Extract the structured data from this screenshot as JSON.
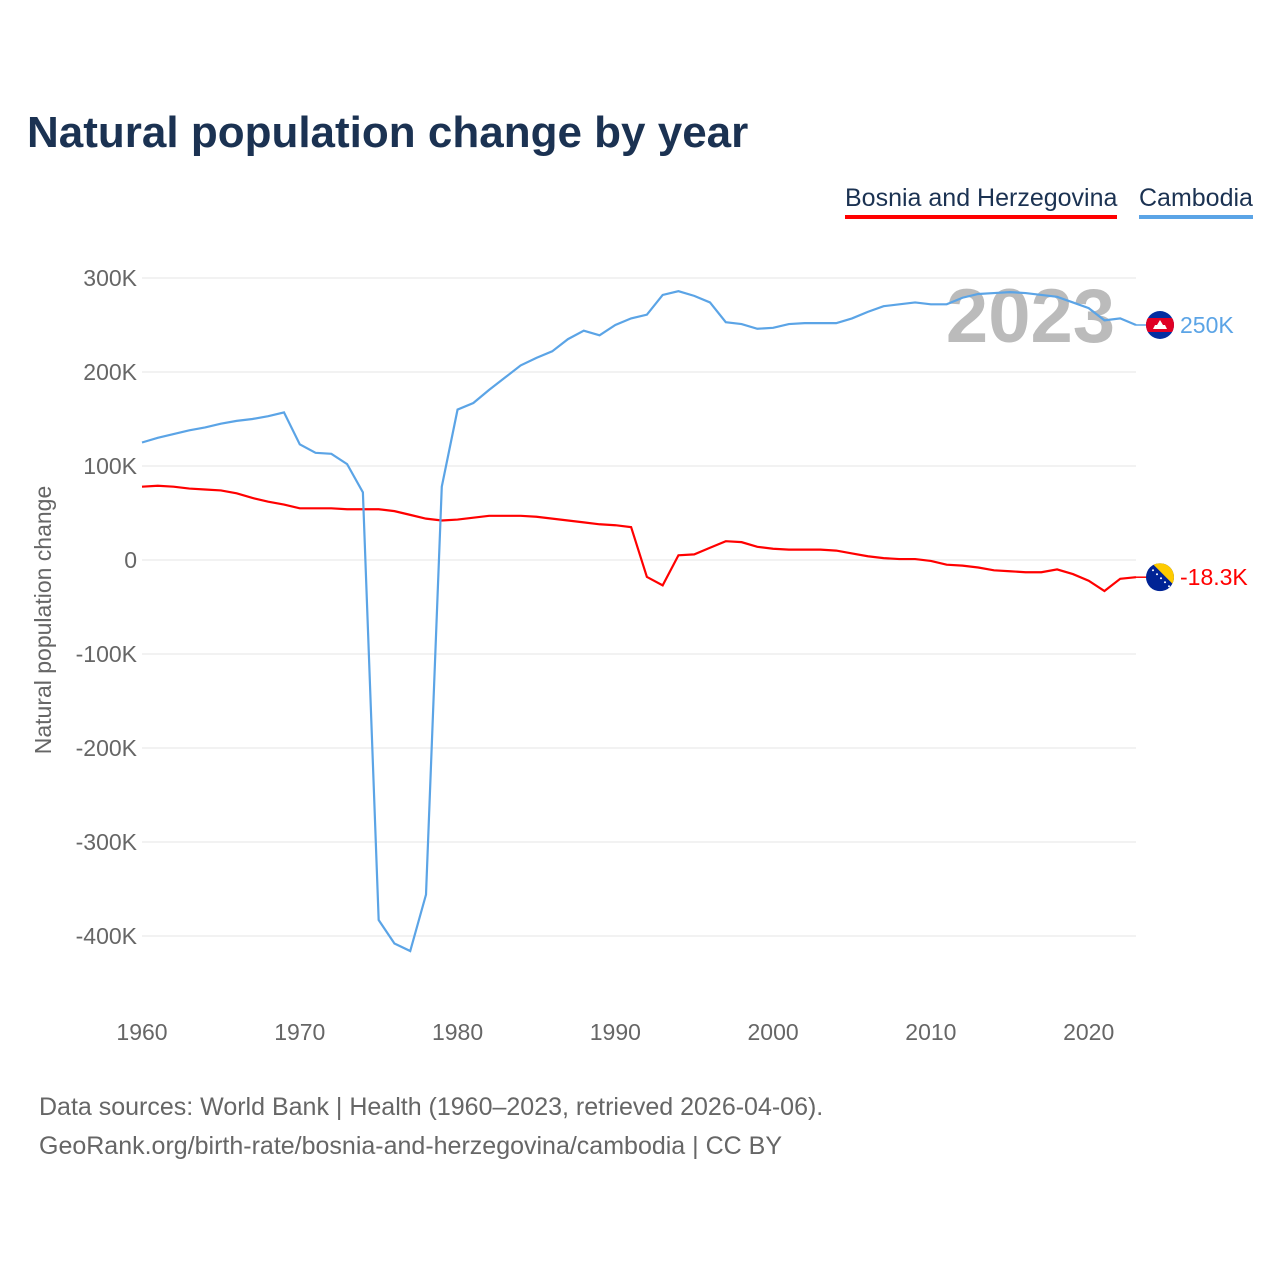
{
  "title": "Natural population change by year",
  "footer": {
    "line1": "Data sources: World Bank | Health (1960–2023, retrieved 2026-04-06).",
    "line2": "GeoRank.org/birth-rate/bosnia-and-herzegovina/cambodia | CC BY"
  },
  "chart_data": {
    "type": "line",
    "title": "Natural population change by year",
    "xlabel": "",
    "ylabel": "Natural population change",
    "year_watermark": "2023",
    "xlim": [
      1960,
      2023
    ],
    "ylim": [
      -450000,
      320000
    ],
    "x_ticks": [
      "1960",
      "1970",
      "1980",
      "1990",
      "2000",
      "2010",
      "2020"
    ],
    "y_ticks": [
      {
        "v": 300000,
        "label": "300K"
      },
      {
        "v": 200000,
        "label": "200K"
      },
      {
        "v": 100000,
        "label": "100K"
      },
      {
        "v": 0,
        "label": "0"
      },
      {
        "v": -100000,
        "label": "-100K"
      },
      {
        "v": -200000,
        "label": "-200K"
      },
      {
        "v": -300000,
        "label": "-300K"
      },
      {
        "v": -400000,
        "label": "-400K"
      }
    ],
    "legend_position": "top-right",
    "series": [
      {
        "name": "Bosnia and Herzegovina",
        "color": "#ff0000",
        "end_label": "-18.3K",
        "flag": "bosnia-flag",
        "values": [
          78,
          79,
          78,
          76,
          75,
          74,
          71,
          66,
          62,
          59,
          55,
          55,
          55,
          54,
          54,
          54,
          52,
          48,
          44,
          42,
          43,
          45,
          47,
          47,
          47,
          46,
          44,
          42,
          40,
          38,
          37,
          35,
          -18,
          -27,
          5,
          6,
          13,
          20,
          19,
          14,
          12,
          11,
          11,
          11,
          10,
          7,
          4,
          2,
          1,
          1,
          -1,
          -5,
          -6,
          -8,
          -11,
          -12,
          -13,
          -13,
          -10,
          -15,
          -22,
          -33,
          -20,
          -18.3
        ]
      },
      {
        "name": "Cambodia",
        "color": "#5ba4e6",
        "end_label": "250K",
        "flag": "cambodia-flag",
        "values": [
          125,
          130,
          134,
          138,
          141,
          145,
          148,
          150,
          153,
          157,
          123,
          114,
          113,
          102,
          72,
          -383,
          -408,
          -416,
          -356,
          78,
          160,
          167,
          181,
          194,
          207,
          215,
          222,
          235,
          244,
          239,
          250,
          257,
          261,
          282,
          286,
          281,
          274,
          253,
          251,
          246,
          247,
          251,
          252,
          252,
          252,
          257,
          264,
          270,
          272,
          274,
          272,
          272,
          279,
          283,
          284,
          285,
          284,
          282,
          280,
          274,
          268,
          255,
          257,
          250
        ]
      }
    ],
    "value_unit": "thousands"
  }
}
